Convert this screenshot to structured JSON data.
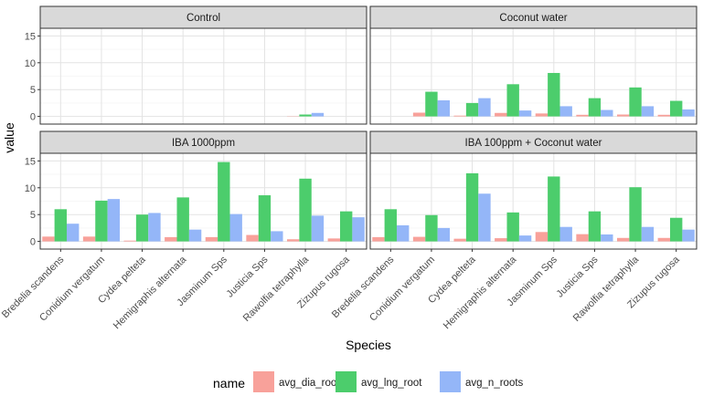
{
  "chart_data": {
    "type": "bar",
    "facet_layout": "2x2",
    "xlabel": "Species",
    "ylabel": "value",
    "ylim": [
      0,
      15
    ],
    "yticks": [
      0,
      5,
      10,
      15
    ],
    "grid": true,
    "legend_position": "bottom",
    "legend_title": "name",
    "categories": [
      "Bredelia scandens",
      "Conidium vergatum",
      "Cydea pelteta",
      "Hemigraphis alternata",
      "Jasminum Sps",
      "Justicia Sps",
      "Rawolfia tetraphylla",
      "Zizupus rugosa"
    ],
    "series_colors": {
      "avg_dia_root": "#f8a19a",
      "avg_lng_root": "#4ccd6c",
      "avg_n_roots": "#94b6f8"
    },
    "facets": [
      {
        "label": "Control",
        "series": [
          {
            "name": "avg_dia_root",
            "values": [
              0,
              0,
              0,
              0,
              0,
              0,
              0.05,
              0
            ]
          },
          {
            "name": "avg_lng_root",
            "values": [
              0,
              0,
              0,
              0,
              0,
              0,
              0.35,
              0
            ]
          },
          {
            "name": "avg_n_roots",
            "values": [
              0,
              0,
              0,
              0,
              0,
              0,
              0.65,
              0
            ]
          }
        ]
      },
      {
        "label": "Coconut water",
        "series": [
          {
            "name": "avg_dia_root",
            "values": [
              0,
              0.7,
              0.15,
              0.65,
              0.55,
              0.3,
              0.35,
              0.3
            ]
          },
          {
            "name": "avg_lng_root",
            "values": [
              0,
              4.6,
              2.5,
              6.0,
              8.1,
              3.4,
              5.4,
              2.9
            ]
          },
          {
            "name": "avg_n_roots",
            "values": [
              0,
              3.0,
              3.4,
              1.1,
              1.9,
              1.2,
              1.9,
              1.3
            ]
          }
        ]
      },
      {
        "label": "IBA 1000ppm",
        "series": [
          {
            "name": "avg_dia_root",
            "values": [
              0.9,
              0.9,
              0.15,
              0.8,
              0.8,
              1.2,
              0.4,
              0.55
            ]
          },
          {
            "name": "avg_lng_root",
            "values": [
              6.0,
              7.6,
              5.0,
              8.2,
              14.8,
              8.6,
              11.7,
              5.6
            ]
          },
          {
            "name": "avg_n_roots",
            "values": [
              3.3,
              7.9,
              5.3,
              2.2,
              5.1,
              1.9,
              4.8,
              4.5
            ]
          }
        ]
      },
      {
        "label": "IBA 100ppm + Coconut water",
        "series": [
          {
            "name": "avg_dia_root",
            "values": [
              0.8,
              0.85,
              0.5,
              0.6,
              1.75,
              1.35,
              0.65,
              0.65
            ]
          },
          {
            "name": "avg_lng_root",
            "values": [
              6.0,
              4.9,
              12.7,
              5.4,
              12.1,
              5.6,
              10.1,
              4.4
            ]
          },
          {
            "name": "avg_n_roots",
            "values": [
              3.0,
              2.5,
              8.9,
              1.1,
              2.7,
              1.3,
              2.7,
              2.2
            ]
          }
        ]
      }
    ]
  }
}
